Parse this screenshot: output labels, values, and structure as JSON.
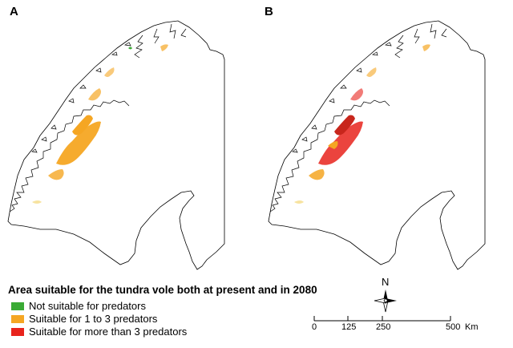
{
  "panels": [
    {
      "label": "A",
      "scenario": "present"
    },
    {
      "label": "B",
      "scenario": "2080"
    }
  ],
  "legend": {
    "title": "Area suitable for the tundra vole both at present and in 2080",
    "items": [
      {
        "label": "Not suitable for predators",
        "color": "#3aaa35"
      },
      {
        "label": "Suitable for 1 to 3 predators",
        "color": "#f5a623"
      },
      {
        "label": "Suitable for more than 3 predators",
        "color": "#e8231c"
      }
    ]
  },
  "north_arrow": {
    "label": "N"
  },
  "scale_bar": {
    "ticks": [
      "0",
      "125",
      "250",
      "500"
    ],
    "unit": "Km"
  },
  "colors": {
    "coast": "#000000",
    "yellow_light": "#f7e3a0",
    "dark_red": "#c8261c"
  }
}
